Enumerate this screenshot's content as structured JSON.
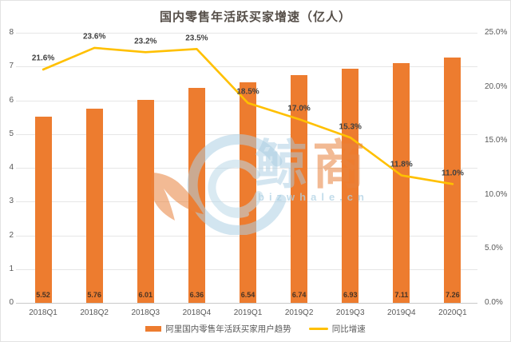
{
  "title": "国内零售年活跃买家增速（亿人）",
  "legend": {
    "bars_label": "阿里国内零售年活跃买家用户趋势",
    "line_label": "同比增速"
  },
  "watermark": {
    "brand_char_1": "鲸",
    "brand_char_2": "商",
    "brand_en": "bizwhale.cn"
  },
  "colors": {
    "bar": "#ED7C2F",
    "line": "#FFC000",
    "grid": "#E6E6E6",
    "axis_text": "#595959",
    "line_label_text": "#404040",
    "bar_label_text": "#4A3424",
    "title_text": "#554E48",
    "watermark_blue": "#A9CDE2",
    "watermark_orange": "#E8833D"
  },
  "chart_data": {
    "type": "bar",
    "subtype": "bar+line combo, dual axis",
    "title": "国内零售年活跃买家增速（亿人）",
    "categories": [
      "2018Q1",
      "2018Q2",
      "2018Q3",
      "2018Q4",
      "2019Q1",
      "2019Q2",
      "2019Q3",
      "2019Q4",
      "2020Q1"
    ],
    "series": [
      {
        "name": "阿里国内零售年活跃买家用户趋势",
        "type": "bar",
        "axis": "left",
        "values": [
          5.52,
          5.76,
          6.01,
          6.36,
          6.54,
          6.74,
          6.93,
          7.11,
          7.26
        ]
      },
      {
        "name": "同比增速",
        "type": "line",
        "axis": "right",
        "unit": "%",
        "values": [
          21.6,
          23.6,
          23.2,
          23.5,
          18.5,
          17.0,
          15.3,
          11.8,
          11.0
        ]
      }
    ],
    "bar_labels": [
      "5.52",
      "5.76",
      "6.01",
      "6.36",
      "6.54",
      "6.74",
      "6.93",
      "7.11",
      "7.26"
    ],
    "line_labels": [
      "21.6%",
      "23.6%",
      "23.2%",
      "23.5%",
      "18.5%",
      "17.0%",
      "15.3%",
      "11.8%",
      "11.0%"
    ],
    "left_axis": {
      "min": 0,
      "max": 8,
      "ticks": [
        "8",
        "7",
        "6",
        "5",
        "4",
        "3",
        "2",
        "1",
        "0"
      ]
    },
    "right_axis": {
      "min": 0,
      "max": 25,
      "ticks": [
        "25.0%",
        "20.0%",
        "15.0%",
        "10.0%",
        "5.0%",
        "0.0%"
      ]
    },
    "legend_position": "bottom",
    "grid": true
  }
}
